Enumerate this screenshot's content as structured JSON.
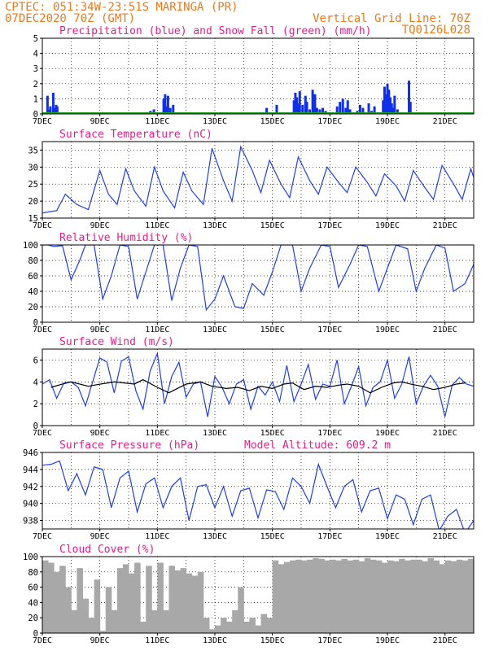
{
  "header": {
    "line1": "CPTEC:   051:34W-23:51S   MARINGA (PR)",
    "line2": "07DEC2020 70Z (GMT)",
    "grid_note": "Vertical Grid Line: 70Z",
    "run_id": "TQ0126L028"
  },
  "colors": {
    "header": "#e87a1e",
    "panel_title": "#e0208a",
    "precip": "#1030e8",
    "snow": "#18a018",
    "line": "#2040e0",
    "cloud": "#a8a8a8",
    "arrow": "#000000"
  },
  "chart_data": [
    {
      "type": "bar",
      "title": "Precipitation (blue) and Snow Fall (green) (mm/h)",
      "x_ticks": [
        "7DEC",
        "9DEC",
        "11DEC",
        "13DEC",
        "15DEC",
        "17DEC",
        "19DEC",
        "21DEC"
      ],
      "ylim": [
        0,
        5
      ],
      "y_ticks": [
        0,
        1,
        2,
        3,
        4,
        5
      ],
      "grid": true,
      "series": [
        {
          "name": "Precipitation",
          "color": "#1030e8",
          "x": [
            7.18,
            7.23,
            7.28,
            7.38,
            7.43,
            7.48,
            7.52,
            10.76,
            10.88,
            11.22,
            11.27,
            11.32,
            11.37,
            11.45,
            11.55,
            14.8,
            15.15,
            15.75,
            15.8,
            15.85,
            15.9,
            15.95,
            16.05,
            16.15,
            16.2,
            16.3,
            16.4,
            16.48,
            16.55,
            16.65,
            16.75,
            16.85,
            17.25,
            17.35,
            17.45,
            17.55,
            17.62,
            17.7,
            17.95,
            18.05,
            18.15,
            18.35,
            18.45,
            18.55,
            18.85,
            18.9,
            18.95,
            19.0,
            19.05,
            19.1,
            19.15,
            19.2,
            19.25,
            19.35,
            19.75,
            19.8
          ],
          "values": [
            1.2,
            0.3,
            0.5,
            1.4,
            0.4,
            0.6,
            0.5,
            0.2,
            0.3,
            1.0,
            1.3,
            0.5,
            1.2,
            0.4,
            0.6,
            0.4,
            0.6,
            0.9,
            1.4,
            1.1,
            0.7,
            1.5,
            0.6,
            1.2,
            0.8,
            0.3,
            1.6,
            1.3,
            0.4,
            0.3,
            0.4,
            0.2,
            0.5,
            0.8,
            1.0,
            0.4,
            0.9,
            0.3,
            0.2,
            0.6,
            0.4,
            0.7,
            0.2,
            0.5,
            0.9,
            1.8,
            1.3,
            2.0,
            1.6,
            1.1,
            0.7,
            0.4,
            1.2,
            0.3,
            2.2,
            0.8
          ]
        },
        {
          "name": "Snow Fall",
          "color": "#18a018",
          "x": [
            7.0,
            22.0
          ],
          "values": [
            0,
            0
          ]
        }
      ]
    },
    {
      "type": "line",
      "title": "Surface Temperature (nC)",
      "ylim": [
        15,
        37.5
      ],
      "y_ticks": [
        15,
        20,
        25,
        30,
        35
      ],
      "series": [
        {
          "name": "",
          "color": "#2040e0",
          "x": [
            7.0,
            7.2,
            7.5,
            7.8,
            8.2,
            8.6,
            9.0,
            9.3,
            9.6,
            9.9,
            10.2,
            10.6,
            10.9,
            11.2,
            11.6,
            11.9,
            12.2,
            12.6,
            12.9,
            13.3,
            13.6,
            13.9,
            14.3,
            14.6,
            14.9,
            15.3,
            15.6,
            15.9,
            16.3,
            16.6,
            16.9,
            17.3,
            17.6,
            17.9,
            18.3,
            18.6,
            18.9,
            19.3,
            19.6,
            19.9,
            20.3,
            20.6,
            20.9,
            21.3,
            21.6,
            21.9,
            22.0
          ],
          "values": [
            16.5,
            16.8,
            17.2,
            22.0,
            19.0,
            17.5,
            29.0,
            22.0,
            19.0,
            29.5,
            23.0,
            18.5,
            30.0,
            23.0,
            18.0,
            28.5,
            23.0,
            19.0,
            35.5,
            26.0,
            20.0,
            36.0,
            29.0,
            22.5,
            32.0,
            25.0,
            21.0,
            33.0,
            26.0,
            22.0,
            30.0,
            25.5,
            22.5,
            30.0,
            25.5,
            21.5,
            28.0,
            24.5,
            20.0,
            29.0,
            24.0,
            20.5,
            30.5,
            25.0,
            20.5,
            29.5,
            27.0
          ]
        }
      ]
    },
    {
      "type": "line",
      "title": "Relative Humidity (%)",
      "ylim": [
        0,
        100
      ],
      "y_ticks": [
        0,
        20,
        40,
        60,
        80,
        100
      ],
      "series": [
        {
          "name": "",
          "color": "#2040e0",
          "x": [
            7.0,
            7.2,
            7.4,
            7.7,
            8.0,
            8.3,
            8.5,
            8.8,
            9.1,
            9.4,
            9.7,
            10.0,
            10.3,
            10.6,
            10.9,
            11.2,
            11.5,
            11.8,
            12.1,
            12.4,
            12.7,
            13.0,
            13.3,
            13.7,
            14.0,
            14.3,
            14.7,
            15.0,
            15.3,
            15.7,
            16.0,
            16.3,
            16.7,
            17.0,
            17.3,
            17.7,
            18.0,
            18.3,
            18.7,
            19.0,
            19.3,
            19.7,
            20.0,
            20.3,
            20.7,
            21.0,
            21.3,
            21.7,
            22.0
          ],
          "values": [
            100,
            100,
            98,
            99,
            55,
            80,
            100,
            100,
            30,
            60,
            100,
            98,
            30,
            65,
            100,
            100,
            28,
            70,
            100,
            98,
            16,
            30,
            60,
            20,
            18,
            50,
            35,
            65,
            100,
            100,
            40,
            70,
            100,
            98,
            45,
            75,
            100,
            98,
            40,
            70,
            100,
            95,
            40,
            70,
            100,
            96,
            40,
            50,
            75
          ]
        }
      ]
    },
    {
      "type": "line",
      "title": "Surface Wind (m/s)",
      "ylim": [
        0,
        7
      ],
      "y_ticks": [
        0,
        2,
        4,
        6
      ],
      "series": [
        {
          "name": "",
          "color": "#2040e0",
          "x": [
            7.0,
            7.25,
            7.5,
            7.75,
            8.0,
            8.25,
            8.5,
            8.75,
            9.0,
            9.25,
            9.5,
            9.75,
            10.0,
            10.25,
            10.5,
            10.75,
            11.0,
            11.25,
            11.5,
            11.75,
            12.0,
            12.25,
            12.5,
            12.75,
            13.0,
            13.25,
            13.5,
            13.75,
            14.0,
            14.25,
            14.5,
            14.75,
            15.0,
            15.25,
            15.5,
            15.75,
            16.0,
            16.25,
            16.5,
            16.75,
            17.0,
            17.25,
            17.5,
            17.75,
            18.0,
            18.25,
            18.5,
            18.75,
            19.0,
            19.25,
            19.5,
            19.75,
            20.0,
            20.25,
            20.5,
            20.75,
            21.0,
            21.25,
            21.5,
            21.75,
            22.0
          ],
          "values": [
            3.8,
            4.2,
            2.5,
            3.9,
            4.0,
            3.5,
            1.8,
            4.0,
            6.2,
            5.8,
            3.0,
            5.9,
            6.3,
            3.2,
            1.5,
            5.0,
            6.6,
            2.0,
            4.5,
            5.8,
            2.6,
            3.8,
            4.0,
            0.8,
            4.5,
            3.5,
            2.0,
            3.8,
            4.2,
            1.5,
            3.6,
            2.8,
            4.0,
            2.2,
            5.5,
            2.2,
            3.8,
            5.6,
            2.4,
            3.8,
            3.6,
            6.0,
            2.0,
            3.6,
            5.4,
            1.8,
            3.5,
            4.0,
            6.0,
            2.5,
            3.8,
            6.3,
            2.0,
            3.6,
            4.6,
            3.6,
            0.8,
            3.7,
            4.4,
            3.8,
            3.6
          ]
        },
        {
          "name": "",
          "color": "#000000",
          "x": [
            7.3,
            7.7,
            8.0,
            8.6,
            8.8,
            9.5,
            10.2,
            10.5,
            11.0,
            11.4,
            12.0,
            12.5,
            12.9,
            13.4,
            13.8,
            14.2,
            14.6,
            15.0,
            15.4,
            15.7,
            16.1,
            16.5,
            16.9,
            17.3,
            17.6,
            18.0,
            18.4,
            18.8,
            19.2,
            19.5,
            19.8,
            20.2,
            20.6,
            21.0,
            21.4,
            21.7
          ],
          "values": [
            3.5,
            3.8,
            4.0,
            3.6,
            3.7,
            4.0,
            3.8,
            4.2,
            3.5,
            3.0,
            3.8,
            4.0,
            3.6,
            3.4,
            3.5,
            3.2,
            3.6,
            3.4,
            3.8,
            3.9,
            3.3,
            3.6,
            3.5,
            3.7,
            3.8,
            3.6,
            3.0,
            3.5,
            3.9,
            4.0,
            3.8,
            3.6,
            3.3,
            3.5,
            3.8,
            3.9
          ]
        }
      ]
    },
    {
      "type": "line",
      "title": "Surface Pressure (hPa)",
      "subtitle": "Model Altitude: 609.2 m",
      "ylim": [
        937,
        946
      ],
      "y_ticks": [
        938,
        940,
        942,
        944,
        946
      ],
      "series": [
        {
          "name": "",
          "color": "#2040e0",
          "x": [
            7.0,
            7.3,
            7.6,
            7.9,
            8.2,
            8.5,
            8.8,
            9.1,
            9.4,
            9.7,
            10.0,
            10.3,
            10.6,
            10.9,
            11.2,
            11.5,
            11.8,
            12.1,
            12.4,
            12.7,
            13.0,
            13.3,
            13.6,
            13.9,
            14.2,
            14.5,
            14.8,
            15.1,
            15.4,
            15.7,
            16.0,
            16.3,
            16.6,
            16.9,
            17.2,
            17.5,
            17.8,
            18.1,
            18.4,
            18.7,
            19.0,
            19.3,
            19.6,
            19.9,
            20.2,
            20.5,
            20.8,
            21.1,
            21.4,
            21.7,
            22.0
          ],
          "values": [
            944.5,
            944.6,
            945.0,
            941.5,
            943.5,
            941.0,
            944.3,
            944.0,
            939.5,
            943.0,
            943.8,
            939.0,
            942.3,
            943.0,
            939.5,
            942.0,
            943.0,
            938.0,
            942.0,
            942.2,
            939.5,
            942.0,
            938.5,
            941.5,
            941.8,
            938.3,
            941.6,
            941.4,
            939.3,
            943.0,
            942.0,
            940.0,
            944.6,
            942.0,
            939.5,
            942.0,
            942.8,
            939.0,
            941.5,
            941.8,
            938.2,
            941.0,
            940.5,
            937.5,
            940.5,
            941.0,
            936.8,
            938.5,
            939.3,
            936.5,
            938.0
          ]
        }
      ]
    },
    {
      "type": "area",
      "title": "Cloud Cover (%)",
      "ylim": [
        0,
        100
      ],
      "y_ticks": [
        0,
        20,
        40,
        60,
        80,
        100
      ],
      "series": [
        {
          "name": "",
          "color": "#a8a8a8",
          "x": [
            7.0,
            7.2,
            7.4,
            7.6,
            7.8,
            8.0,
            8.2,
            8.4,
            8.6,
            8.8,
            9.0,
            9.2,
            9.4,
            9.6,
            9.8,
            10.0,
            10.2,
            10.4,
            10.6,
            10.8,
            11.0,
            11.2,
            11.4,
            11.6,
            11.8,
            12.0,
            12.2,
            12.4,
            12.6,
            12.8,
            13.0,
            13.2,
            13.4,
            13.6,
            13.8,
            14.0,
            14.2,
            14.4,
            14.6,
            14.8,
            15.0,
            15.2,
            15.4,
            15.6,
            15.8,
            16.0,
            16.2,
            16.4,
            16.6,
            16.8,
            17.0,
            17.2,
            17.4,
            17.6,
            17.8,
            18.0,
            18.2,
            18.4,
            18.6,
            18.8,
            19.0,
            19.2,
            19.4,
            19.6,
            19.8,
            20.0,
            20.2,
            20.4,
            20.6,
            20.8,
            21.0,
            21.2,
            21.4,
            21.6,
            21.8,
            22.0
          ],
          "values": [
            95,
            92,
            80,
            88,
            60,
            30,
            85,
            45,
            20,
            70,
            3,
            60,
            30,
            85,
            90,
            78,
            92,
            15,
            88,
            30,
            92,
            30,
            88,
            82,
            85,
            78,
            75,
            80,
            20,
            5,
            10,
            20,
            15,
            30,
            60,
            15,
            20,
            10,
            25,
            20,
            95,
            90,
            93,
            95,
            96,
            95,
            96,
            98,
            97,
            95,
            96,
            95,
            97,
            95,
            96,
            94,
            98,
            96,
            95,
            92,
            95,
            94,
            97,
            95,
            96,
            96,
            94,
            98,
            95,
            90,
            95,
            94,
            96,
            95,
            97,
            98
          ]
        }
      ]
    }
  ]
}
